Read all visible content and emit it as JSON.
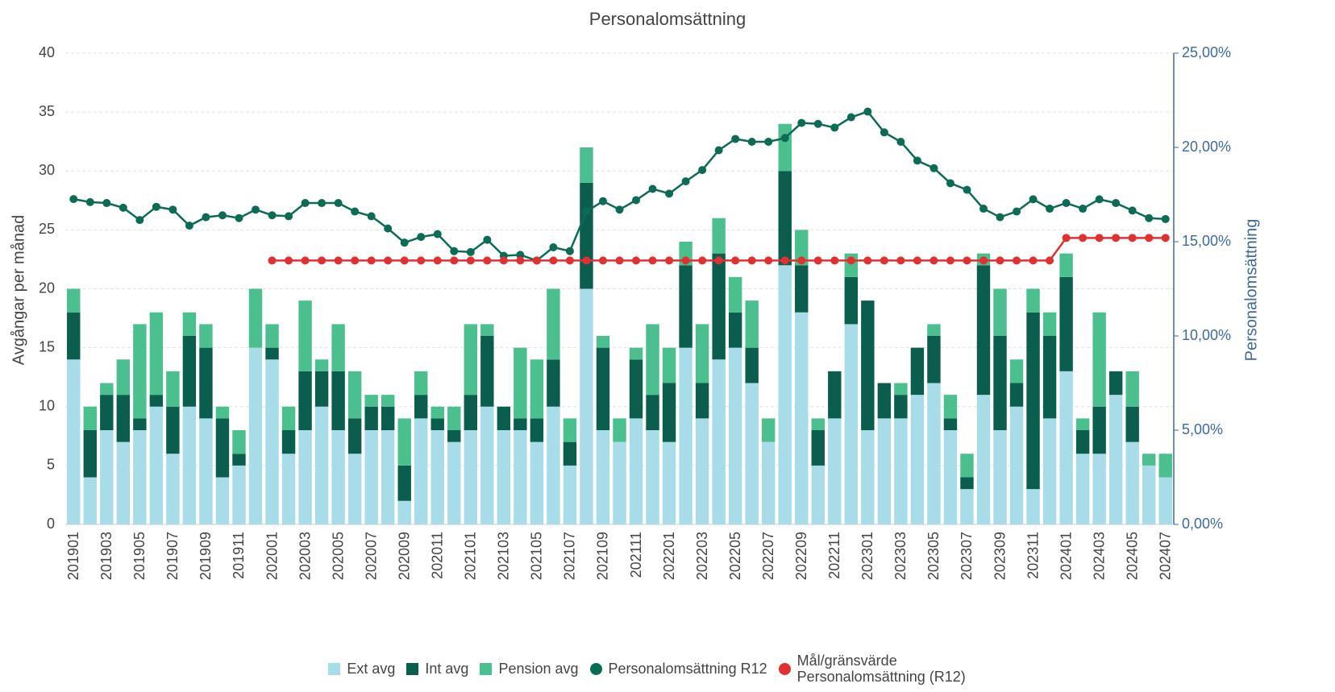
{
  "chart_data": {
    "type": "bar",
    "stacked": true,
    "title": "Personalomsättning",
    "y_label": "Avgångar per månad",
    "y2_label": "Personalomsättning",
    "categories": [
      "201901",
      null,
      "201903",
      null,
      "201905",
      null,
      "201907",
      null,
      "201909",
      null,
      "201911",
      null,
      "202001",
      null,
      "202003",
      null,
      "202005",
      null,
      "202007",
      null,
      "202009",
      null,
      "202011",
      null,
      "202101",
      null,
      "202103",
      null,
      "202105",
      null,
      "202107",
      null,
      "202109",
      null,
      "202111",
      null,
      "202201",
      null,
      "202203",
      null,
      "202205",
      null,
      "202207",
      null,
      "202209",
      null,
      "202211",
      null,
      "202301",
      null,
      "202303",
      null,
      "202305",
      null,
      "202307",
      null,
      "202309",
      null,
      "202311",
      null,
      "202401",
      null,
      "202403",
      null,
      "202405",
      null,
      "202407"
    ],
    "ylim": [
      0,
      40
    ],
    "yticks": [
      0,
      5,
      10,
      15,
      20,
      25,
      30,
      35,
      40
    ],
    "y2lim": [
      0,
      25
    ],
    "y2ticks": [
      {
        "value": 0,
        "label": "0,00%"
      },
      {
        "value": 5,
        "label": "5,00%"
      },
      {
        "value": 10,
        "label": "10,00%"
      },
      {
        "value": 15,
        "label": "15,00%"
      },
      {
        "value": 20,
        "label": "20,00%"
      },
      {
        "value": 25,
        "label": "25,00%"
      }
    ],
    "grid": true,
    "legend": "bottom",
    "series": [
      {
        "name": "Ext avg",
        "type": "bar",
        "color": "#a8dce8",
        "values": [
          14,
          4,
          8,
          7,
          8,
          10,
          6,
          10,
          9,
          4,
          5,
          15,
          14,
          6,
          8,
          10,
          8,
          6,
          8,
          8,
          2,
          9,
          8,
          7,
          8,
          10,
          8,
          8,
          7,
          10,
          5,
          20,
          8,
          7,
          9,
          8,
          7,
          15,
          9,
          14,
          15,
          12,
          7,
          22,
          18,
          5,
          9,
          17,
          8,
          9,
          9,
          11,
          12,
          8,
          3,
          11,
          8,
          10,
          3,
          9,
          13,
          6,
          6,
          11,
          7,
          5,
          4
        ]
      },
      {
        "name": "Int avg",
        "type": "bar",
        "color": "#0b5e4d",
        "values": [
          4,
          4,
          3,
          4,
          1,
          1,
          4,
          6,
          6,
          5,
          1,
          0,
          1,
          2,
          5,
          3,
          5,
          3,
          2,
          2,
          3,
          2,
          1,
          1,
          3,
          6,
          2,
          1,
          2,
          4,
          2,
          9,
          7,
          0,
          5,
          3,
          5,
          7,
          3,
          9,
          3,
          3,
          0,
          8,
          4,
          3,
          4,
          4,
          11,
          3,
          2,
          4,
          4,
          1,
          1,
          11,
          8,
          2,
          15,
          7,
          8,
          2,
          4,
          2,
          3,
          0,
          0
        ]
      },
      {
        "name": "Pension avg",
        "type": "bar",
        "color": "#4cbf8f",
        "values": [
          2,
          2,
          1,
          3,
          8,
          7,
          3,
          2,
          2,
          1,
          2,
          5,
          2,
          2,
          6,
          1,
          4,
          4,
          1,
          1,
          4,
          2,
          1,
          2,
          6,
          1,
          0,
          6,
          5,
          6,
          2,
          3,
          1,
          2,
          1,
          6,
          3,
          2,
          5,
          3,
          3,
          4,
          2,
          4,
          3,
          1,
          0,
          2,
          0,
          0,
          1,
          0,
          1,
          2,
          2,
          1,
          4,
          2,
          2,
          2,
          2,
          1,
          8,
          0,
          3,
          1,
          2
        ]
      },
      {
        "name": "Personalomsättning R12",
        "type": "line",
        "axis": "y2",
        "color": "#0b6b55",
        "values": [
          17.26,
          17.1,
          17.05,
          16.8,
          16.15,
          16.85,
          16.7,
          15.85,
          16.3,
          16.4,
          16.25,
          16.7,
          16.4,
          16.35,
          17.05,
          17.05,
          17.05,
          16.6,
          16.35,
          15.7,
          14.95,
          15.25,
          15.4,
          14.5,
          14.45,
          15.1,
          14.25,
          14.3,
          14.0,
          14.7,
          14.5,
          16.6,
          17.15,
          16.7,
          17.2,
          17.8,
          17.55,
          18.2,
          18.8,
          19.85,
          20.45,
          20.3,
          20.3,
          20.5,
          21.3,
          21.25,
          21.05,
          21.6,
          21.9,
          20.8,
          20.3,
          19.3,
          18.9,
          18.1,
          17.75,
          16.75,
          16.3,
          16.6,
          17.25,
          16.75,
          17.05,
          16.75,
          17.25,
          17.05,
          16.65,
          16.25,
          16.2
        ]
      },
      {
        "name": "Mål/gränsvärde Personalomsättning (R12)",
        "type": "line",
        "axis": "y2",
        "color": "#e03030",
        "values": [
          null,
          null,
          null,
          null,
          null,
          null,
          null,
          null,
          null,
          null,
          null,
          null,
          14,
          14,
          14,
          14,
          14,
          14,
          14,
          14,
          14,
          14,
          14,
          14,
          14,
          14,
          14,
          14,
          14,
          14,
          14,
          14,
          14,
          14,
          14,
          14,
          14,
          14,
          14,
          14,
          14,
          14,
          14,
          14,
          14,
          14,
          14,
          14,
          14,
          14,
          14,
          14,
          14,
          14,
          14,
          14,
          14,
          14,
          14,
          14,
          15.2,
          15.2,
          15.2,
          15.2,
          15.2,
          15.2,
          15.2
        ]
      }
    ]
  }
}
